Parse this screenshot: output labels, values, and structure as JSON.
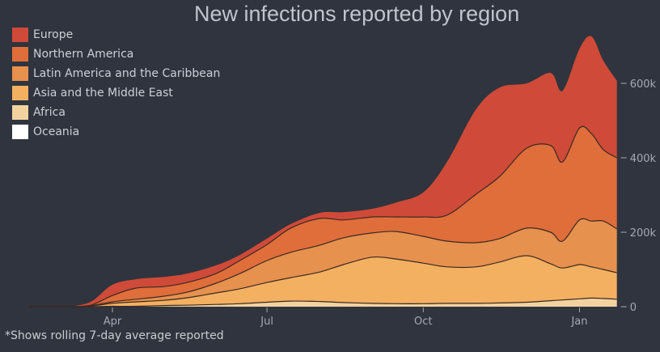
{
  "chart_data": {
    "type": "area",
    "stacked": true,
    "title": "New infections reported by region",
    "footnote": "*Shows rolling 7-day average reported",
    "xlabel": "",
    "ylabel": "",
    "y_axis_position": "right",
    "ylim": [
      0,
      740000
    ],
    "y_ticks": [
      {
        "value": 0,
        "label": "0"
      },
      {
        "value": 200000,
        "label": "200k"
      },
      {
        "value": 400000,
        "label": "400k"
      },
      {
        "value": 600000,
        "label": "600k"
      }
    ],
    "x_ticks": [
      {
        "date": "2020-04-01",
        "label": "Apr"
      },
      {
        "date": "2020-07-01",
        "label": "Jul"
      },
      {
        "date": "2020-10-01",
        "label": "Oct"
      },
      {
        "date": "2021-01-01",
        "label": "Jan"
      }
    ],
    "legend_position": "top-left",
    "grid": false,
    "x": [
      "2020-02-12",
      "2020-02-28",
      "2020-03-05",
      "2020-03-10",
      "2020-03-20",
      "2020-04-01",
      "2020-04-15",
      "2020-05-01",
      "2020-05-15",
      "2020-06-01",
      "2020-06-15",
      "2020-07-01",
      "2020-07-15",
      "2020-08-01",
      "2020-08-15",
      "2020-09-01",
      "2020-09-15",
      "2020-10-01",
      "2020-10-15",
      "2020-11-01",
      "2020-11-15",
      "2020-12-01",
      "2020-12-15",
      "2020-12-22",
      "2021-01-01",
      "2021-01-08",
      "2021-01-15",
      "2021-01-23"
    ],
    "series": [
      {
        "name": "Oceania",
        "color": "#ffffff",
        "values": [
          0,
          0,
          0,
          0,
          0,
          0,
          0,
          0,
          0,
          0,
          0,
          0,
          0,
          0,
          0,
          0,
          0,
          0,
          0,
          0,
          0,
          0,
          0,
          0,
          0,
          0,
          0,
          0
        ]
      },
      {
        "name": "Africa",
        "color": "#f2d3a0",
        "values": [
          0,
          0,
          0,
          0,
          0,
          1000,
          1000,
          3000,
          4000,
          6000,
          8000,
          12000,
          15000,
          14000,
          11000,
          9000,
          8000,
          8000,
          9000,
          9000,
          10000,
          12000,
          16000,
          18000,
          21000,
          23000,
          22000,
          20000
        ]
      },
      {
        "name": "Asia and the Middle East",
        "color": "#f3b061",
        "values": [
          0,
          1000,
          0,
          0,
          2000,
          8000,
          12000,
          14000,
          20000,
          31000,
          40000,
          53000,
          63000,
          79000,
          102000,
          124000,
          120000,
          109000,
          98000,
          98000,
          110000,
          125000,
          99000,
          86000,
          92000,
          84000,
          78000,
          71000
        ]
      },
      {
        "name": "Latin America and the Caribbean",
        "color": "#e6914e",
        "values": [
          0,
          0,
          0,
          0,
          1000,
          4000,
          7000,
          11000,
          15000,
          26000,
          41000,
          59000,
          68000,
          72000,
          72000,
          65000,
          74000,
          72000,
          69000,
          65000,
          63000,
          74000,
          85000,
          72000,
          120000,
          123000,
          130000,
          118000
        ]
      },
      {
        "name": "Northern America",
        "color": "#df6e3b",
        "values": [
          0,
          0,
          0,
          0,
          2000,
          17000,
          30000,
          26000,
          26000,
          26000,
          35000,
          43000,
          65000,
          72000,
          48000,
          43000,
          39000,
          52000,
          70000,
          130000,
          167000,
          215000,
          233000,
          213000,
          247000,
          235000,
          192000,
          191000
        ]
      },
      {
        "name": "Europe",
        "color": "#cf4a38",
        "values": [
          0,
          0,
          1000,
          2000,
          10000,
          29000,
          24000,
          26000,
          24000,
          22000,
          15000,
          16000,
          11000,
          15000,
          21000,
          22000,
          39000,
          66000,
          143000,
          228000,
          239000,
          174000,
          195000,
          191000,
          213000,
          261000,
          239000,
          207000
        ]
      }
    ]
  },
  "legend": {
    "items": [
      {
        "label": "Europe",
        "color": "#cf4a38"
      },
      {
        "label": "Northern America",
        "color": "#df6e3b"
      },
      {
        "label": "Latin America and the Caribbean",
        "color": "#e6914e"
      },
      {
        "label": "Asia and the Middle East",
        "color": "#f3b061"
      },
      {
        "label": "Africa",
        "color": "#f2d3a0"
      },
      {
        "label": "Oceania",
        "color": "#ffffff"
      }
    ]
  },
  "colors": {
    "background": "#2f343e",
    "boundary_line": "#3a2a22",
    "axis_text": "#a4aab2"
  }
}
